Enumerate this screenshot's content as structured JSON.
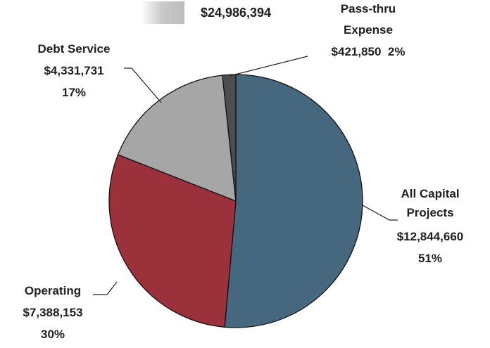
{
  "chart_data": {
    "type": "pie",
    "title": "$24,986,394",
    "categories": [
      "All Capital Projects",
      "Operating",
      "Debt Service",
      "Pass-thru Expense"
    ],
    "values": [
      12844660,
      7388153,
      4331731,
      421850
    ],
    "value_labels": [
      "$12,844,660",
      "$7,388,153",
      "$4,331,731",
      "$421,850"
    ],
    "percent_labels": [
      "51%",
      "30%",
      "17%",
      "2%"
    ],
    "colors": [
      "#46687f",
      "#9b313b",
      "#a6a6a6",
      "#4d4d4d"
    ]
  }
}
